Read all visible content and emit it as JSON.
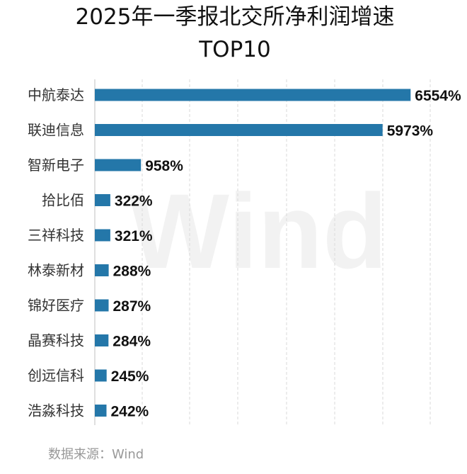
{
  "chart_data": {
    "type": "bar",
    "orientation": "horizontal",
    "title": "2025年一季报北交所净利润增速",
    "subtitle": "TOP10",
    "categories": [
      "中航泰达",
      "联迪信息",
      "智新电子",
      "拾比佰",
      "三祥科技",
      "林泰新材",
      "锦好医疗",
      "晶赛科技",
      "创远信科",
      "浩淼科技"
    ],
    "values": [
      6554,
      5973,
      958,
      322,
      321,
      288,
      287,
      284,
      245,
      242
    ],
    "value_labels": [
      "6554%",
      "5973%",
      "958%",
      "322%",
      "321%",
      "288%",
      "287%",
      "284%",
      "245%",
      "242%"
    ],
    "unit": "%",
    "xlim": [
      0,
      6800
    ],
    "xlabel": "",
    "ylabel": "",
    "grid": "vertical dashed",
    "legend": "none",
    "bar_color": "#2477a9",
    "source": "数据来源：Wind",
    "watermark": "Wind"
  }
}
